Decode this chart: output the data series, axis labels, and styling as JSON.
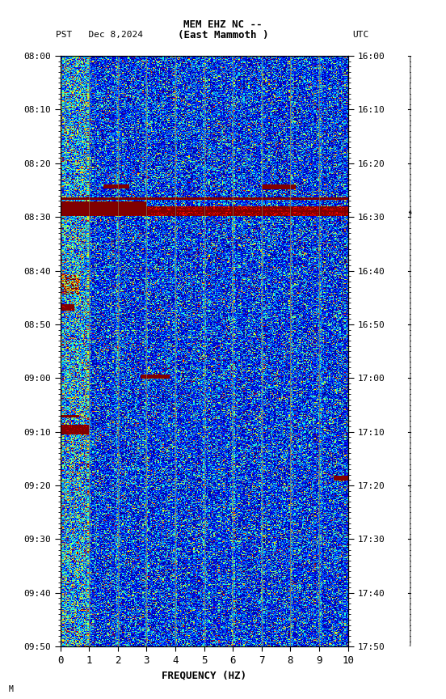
{
  "title_line1": "MEM EHZ NC --",
  "title_line2": "(East Mammoth )",
  "left_label": "PST   Dec 8,2024",
  "right_label": "UTC",
  "xlabel": "FREQUENCY (HZ)",
  "freq_min": 0,
  "freq_max": 10,
  "pst_ticks": [
    "08:00",
    "08:10",
    "08:20",
    "08:30",
    "08:40",
    "08:50",
    "09:00",
    "09:10",
    "09:20",
    "09:30",
    "09:40",
    "09:50"
  ],
  "utc_ticks": [
    "16:00",
    "16:10",
    "16:20",
    "16:30",
    "16:40",
    "16:50",
    "17:00",
    "17:10",
    "17:20",
    "17:30",
    "17:40",
    "17:50"
  ],
  "freq_ticks": [
    0,
    1,
    2,
    3,
    4,
    5,
    6,
    7,
    8,
    9,
    10
  ],
  "vert_lines_freq": [
    1,
    2,
    3,
    4,
    5,
    6,
    7,
    8,
    9
  ],
  "fig_width": 5.52,
  "fig_height": 8.64,
  "n_freq": 300,
  "n_time": 900
}
